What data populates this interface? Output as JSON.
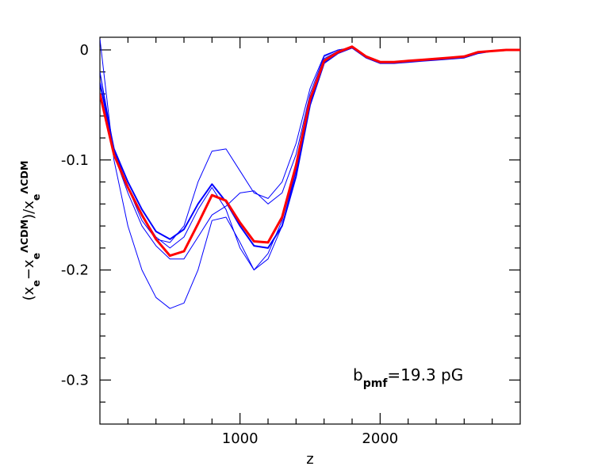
{
  "chart_data": {
    "type": "line",
    "xlabel": "z",
    "ylabel": [
      {
        "text": "(x"
      },
      {
        "text": "e",
        "shift": "sub"
      },
      {
        "text": "−x"
      },
      {
        "text": "e",
        "shift": "sub"
      },
      {
        "text": "ΛCDM",
        "shift": "super"
      },
      {
        "text": ")/x"
      },
      {
        "text": "e",
        "shift": "sub"
      },
      {
        "text": "ΛCDM",
        "shift": "super"
      }
    ],
    "annotation": {
      "color": "#ff0000",
      "parts": [
        {
          "text": "b"
        },
        {
          "text": "pmf",
          "shift": "sub"
        },
        {
          "text": "=19.3  pG"
        }
      ]
    },
    "x": [
      0,
      100,
      200,
      300,
      400,
      500,
      600,
      700,
      800,
      900,
      1000,
      1100,
      1200,
      1300,
      1400,
      1500,
      1600,
      1700,
      1800,
      1900,
      2000,
      2100,
      2200,
      2300,
      2400,
      2500,
      2600,
      2700,
      2800,
      2900,
      3000
    ],
    "series": [
      {
        "color": "#0000ff",
        "width": 1,
        "values": [
          -0.02,
          -0.09,
          -0.125,
          -0.155,
          -0.172,
          -0.175,
          -0.16,
          -0.12,
          -0.092,
          -0.09,
          -0.11,
          -0.13,
          -0.135,
          -0.12,
          -0.085,
          -0.035,
          -0.005,
          0,
          0.002,
          -0.006,
          -0.011,
          -0.011,
          -0.01,
          -0.009,
          -0.008,
          -0.007,
          -0.006,
          -0.002,
          -0.001,
          0,
          0
        ]
      },
      {
        "color": "#0000ff",
        "width": 1,
        "values": [
          0.01,
          -0.1,
          -0.16,
          -0.2,
          -0.225,
          -0.235,
          -0.23,
          -0.2,
          -0.155,
          -0.152,
          -0.175,
          -0.2,
          -0.19,
          -0.16,
          -0.11,
          -0.045,
          -0.008,
          -0.001,
          0.002,
          -0.006,
          -0.012,
          -0.012,
          -0.011,
          -0.01,
          -0.009,
          -0.008,
          -0.007,
          -0.003,
          -0.001,
          0,
          0
        ]
      },
      {
        "color": "#0000ff",
        "width": 1,
        "values": [
          -0.02,
          -0.095,
          -0.13,
          -0.16,
          -0.178,
          -0.19,
          -0.19,
          -0.17,
          -0.15,
          -0.142,
          -0.13,
          -0.128,
          -0.14,
          -0.13,
          -0.095,
          -0.04,
          -0.006,
          0,
          0.002,
          -0.006,
          -0.011,
          -0.011,
          -0.01,
          -0.009,
          -0.008,
          -0.007,
          -0.006,
          -0.002,
          -0.001,
          0,
          0
        ]
      },
      {
        "color": "#0000ff",
        "width": 1,
        "values": [
          -0.03,
          -0.092,
          -0.125,
          -0.15,
          -0.17,
          -0.18,
          -0.17,
          -0.145,
          -0.125,
          -0.145,
          -0.18,
          -0.2,
          -0.185,
          -0.155,
          -0.11,
          -0.045,
          -0.01,
          -0.002,
          0.002,
          -0.006,
          -0.012,
          -0.012,
          -0.011,
          -0.01,
          -0.009,
          -0.008,
          -0.007,
          -0.003,
          -0.001,
          0,
          0
        ]
      },
      {
        "color": "#0000ff",
        "width": 2,
        "values": [
          -0.03,
          -0.09,
          -0.12,
          -0.145,
          -0.165,
          -0.172,
          -0.163,
          -0.14,
          -0.122,
          -0.138,
          -0.16,
          -0.178,
          -0.18,
          -0.16,
          -0.115,
          -0.05,
          -0.012,
          -0.003,
          0.002,
          -0.007,
          -0.012,
          -0.012,
          -0.011,
          -0.01,
          -0.009,
          -0.008,
          -0.007,
          -0.003,
          -0.001,
          0,
          0
        ]
      },
      {
        "color": "#ff0000",
        "width": 3,
        "values": [
          -0.04,
          -0.095,
          -0.125,
          -0.15,
          -0.172,
          -0.187,
          -0.183,
          -0.158,
          -0.132,
          -0.137,
          -0.157,
          -0.174,
          -0.175,
          -0.152,
          -0.105,
          -0.045,
          -0.01,
          -0.002,
          0.003,
          -0.006,
          -0.011,
          -0.011,
          -0.01,
          -0.009,
          -0.008,
          -0.007,
          -0.006,
          -0.002,
          -0.001,
          0,
          0
        ]
      }
    ],
    "xlim": [
      0,
      3000
    ],
    "ylim": [
      -0.34,
      0.0115
    ],
    "xticks": [
      1000,
      2000
    ],
    "yticks": [
      0,
      -0.1,
      -0.2,
      -0.3
    ],
    "xminorticks": [
      200,
      400,
      600,
      800,
      1200,
      1400,
      1600,
      1800,
      2200,
      2400,
      2600,
      2800
    ],
    "yminorticks": [
      -0.02,
      -0.04,
      -0.06,
      -0.08,
      -0.12,
      -0.14,
      -0.16,
      -0.18,
      -0.22,
      -0.24,
      -0.26,
      -0.28,
      -0.32
    ]
  }
}
